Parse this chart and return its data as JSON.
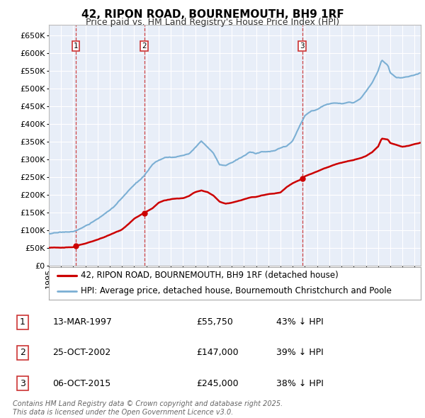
{
  "title": "42, RIPON ROAD, BOURNEMOUTH, BH9 1RF",
  "subtitle": "Price paid vs. HM Land Registry's House Price Index (HPI)",
  "ylim": [
    0,
    680000
  ],
  "yticks": [
    0,
    50000,
    100000,
    150000,
    200000,
    250000,
    300000,
    350000,
    400000,
    450000,
    500000,
    550000,
    600000,
    650000
  ],
  "ytick_labels": [
    "£0",
    "£50K",
    "£100K",
    "£150K",
    "£200K",
    "£250K",
    "£300K",
    "£350K",
    "£400K",
    "£450K",
    "£500K",
    "£550K",
    "£600K",
    "£650K"
  ],
  "sale_dates": [
    1997.21,
    2002.82,
    2015.77
  ],
  "sale_prices": [
    55750,
    147000,
    245000
  ],
  "sale_labels": [
    "1",
    "2",
    "3"
  ],
  "sale_info": [
    {
      "label": "1",
      "date": "13-MAR-1997",
      "price": "£55,750",
      "hpi": "43% ↓ HPI"
    },
    {
      "label": "2",
      "date": "25-OCT-2002",
      "price": "£147,000",
      "hpi": "39% ↓ HPI"
    },
    {
      "label": "3",
      "date": "06-OCT-2015",
      "price": "£245,000",
      "hpi": "38% ↓ HPI"
    }
  ],
  "legend_entries": [
    {
      "label": "42, RIPON ROAD, BOURNEMOUTH, BH9 1RF (detached house)",
      "color": "#cc0000",
      "lw": 1.8
    },
    {
      "label": "HPI: Average price, detached house, Bournemouth Christchurch and Poole",
      "color": "#7bafd4",
      "lw": 1.5
    }
  ],
  "footnote": "Contains HM Land Registry data © Crown copyright and database right 2025.\nThis data is licensed under the Open Government Licence v3.0.",
  "bg_color": "#ffffff",
  "plot_bg_color": "#e8eef8",
  "grid_color": "#ffffff",
  "dashed_line_color": "#cc3333",
  "marker_box_color": "#cc3333",
  "title_fontsize": 11,
  "subtitle_fontsize": 9,
  "tick_fontsize": 8,
  "legend_fontsize": 8.5,
  "table_fontsize": 9,
  "footnote_fontsize": 7
}
